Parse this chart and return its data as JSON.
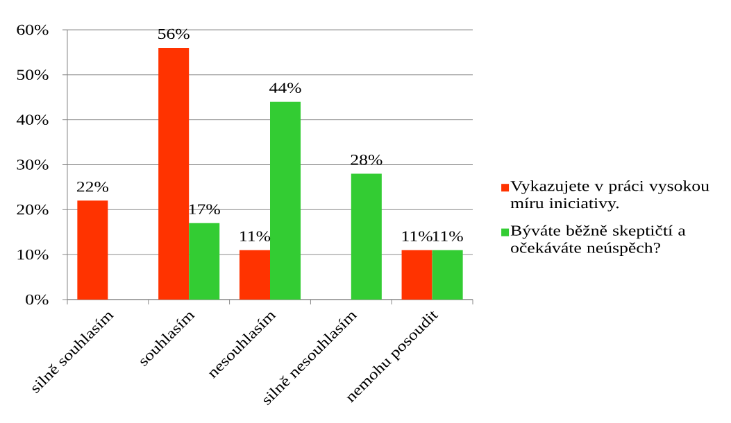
{
  "chart_data": {
    "type": "bar",
    "categories": [
      "silně souhlasím",
      "souhlasím",
      "nesouhlasím",
      "silně nesouhlasím",
      "nemohu posoudit"
    ],
    "series": [
      {
        "name": "Vykazujete v práci vysokou míru iniciativy.",
        "color": "#ff3300",
        "values": [
          22,
          56,
          11,
          null,
          11
        ],
        "value_labels": [
          "22%",
          "56%",
          "11%",
          null,
          "11%"
        ]
      },
      {
        "name": "Býváte běžně skeptičtí a očekáváte neúspěch?",
        "color": "#33cc33",
        "values": [
          null,
          17,
          44,
          28,
          11
        ],
        "value_labels": [
          null,
          "17%",
          "44%",
          "28%",
          "11%"
        ]
      }
    ],
    "ylim": [
      0,
      60
    ],
    "yticks": [
      {
        "value": 0,
        "label": "0%"
      },
      {
        "value": 10,
        "label": "10%"
      },
      {
        "value": 20,
        "label": "20%"
      },
      {
        "value": 30,
        "label": "30%"
      },
      {
        "value": 40,
        "label": "40%"
      },
      {
        "value": 50,
        "label": "50%"
      },
      {
        "value": 60,
        "label": "60%"
      }
    ],
    "grid": "y",
    "legend": "right"
  }
}
